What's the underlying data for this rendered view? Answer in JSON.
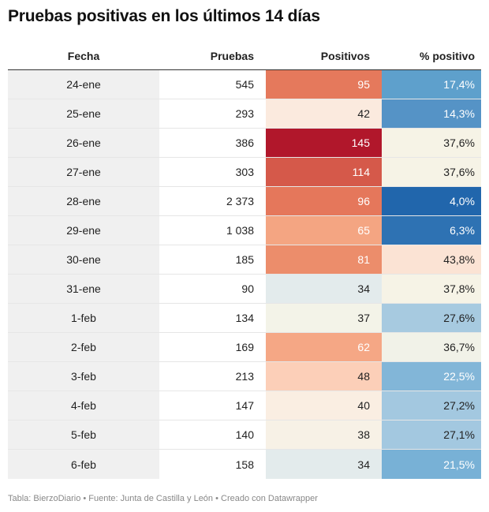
{
  "title": "Pruebas positivas en los últimos 14 días",
  "footer": "Tabla: BierzoDiario • Fuente: Junta de Castilla y León • Creado con Datawrapper",
  "chart_data": {
    "type": "table",
    "columns": [
      "Fecha",
      "Pruebas",
      "Positivos",
      "% positivo"
    ],
    "rows": [
      {
        "fecha": "24-ene",
        "pruebas": "545",
        "positivos": "95",
        "pct": "17,4%",
        "pos_bg": "#e5795c",
        "pos_fg": "#ffffff",
        "pct_bg": "#5ea0cc",
        "pct_fg": "#ffffff"
      },
      {
        "fecha": "25-ene",
        "pruebas": "293",
        "positivos": "42",
        "pct": "14,3%",
        "pos_bg": "#fbeade",
        "pos_fg": "#222222",
        "pct_bg": "#5593c6",
        "pct_fg": "#ffffff"
      },
      {
        "fecha": "26-ene",
        "pruebas": "386",
        "positivos": "145",
        "pct": "37,6%",
        "pos_bg": "#b1172b",
        "pos_fg": "#ffffff",
        "pct_bg": "#f6f3e6",
        "pct_fg": "#222222"
      },
      {
        "fecha": "27-ene",
        "pruebas": "303",
        "positivos": "114",
        "pct": "37,6%",
        "pos_bg": "#d5594a",
        "pos_fg": "#ffffff",
        "pct_bg": "#f6f3e6",
        "pct_fg": "#222222"
      },
      {
        "fecha": "28-ene",
        "pruebas": "2 373",
        "positivos": "96",
        "pct": "4,0%",
        "pos_bg": "#e5775b",
        "pos_fg": "#ffffff",
        "pct_bg": "#2166ac",
        "pct_fg": "#ffffff"
      },
      {
        "fecha": "29-ene",
        "pruebas": "1 038",
        "positivos": "65",
        "pct": "6,3%",
        "pos_bg": "#f4a582",
        "pos_fg": "#ffffff",
        "pct_bg": "#2e72b3",
        "pct_fg": "#ffffff"
      },
      {
        "fecha": "30-ene",
        "pruebas": "185",
        "positivos": "81",
        "pct": "43,8%",
        "pos_bg": "#ec8d6b",
        "pos_fg": "#ffffff",
        "pct_bg": "#fbe3d4",
        "pct_fg": "#222222"
      },
      {
        "fecha": "31-ene",
        "pruebas": "90",
        "positivos": "34",
        "pct": "37,8%",
        "pos_bg": "#e3ebec",
        "pos_fg": "#222222",
        "pct_bg": "#f6f3e6",
        "pct_fg": "#222222"
      },
      {
        "fecha": "1-feb",
        "pruebas": "134",
        "positivos": "37",
        "pct": "27,6%",
        "pos_bg": "#f3f3e8",
        "pos_fg": "#222222",
        "pct_bg": "#a7cae0",
        "pct_fg": "#222222"
      },
      {
        "fecha": "2-feb",
        "pruebas": "169",
        "positivos": "62",
        "pct": "36,7%",
        "pos_bg": "#f5a785",
        "pos_fg": "#ffffff",
        "pct_bg": "#f1f2e8",
        "pct_fg": "#222222"
      },
      {
        "fecha": "3-feb",
        "pruebas": "213",
        "positivos": "48",
        "pct": "22,5%",
        "pos_bg": "#fccfb8",
        "pos_fg": "#222222",
        "pct_bg": "#82b6d8",
        "pct_fg": "#ffffff"
      },
      {
        "fecha": "4-feb",
        "pruebas": "147",
        "positivos": "40",
        "pct": "27,2%",
        "pos_bg": "#faeee2",
        "pos_fg": "#222222",
        "pct_bg": "#a3c8e0",
        "pct_fg": "#222222"
      },
      {
        "fecha": "5-feb",
        "pruebas": "140",
        "positivos": "38",
        "pct": "27,1%",
        "pos_bg": "#f7f1e6",
        "pos_fg": "#222222",
        "pct_bg": "#a3c8e0",
        "pct_fg": "#222222"
      },
      {
        "fecha": "6-feb",
        "pruebas": "158",
        "positivos": "34",
        "pct": "21,5%",
        "pos_bg": "#e3ebec",
        "pos_fg": "#222222",
        "pct_bg": "#78b1d6",
        "pct_fg": "#ffffff"
      }
    ]
  }
}
